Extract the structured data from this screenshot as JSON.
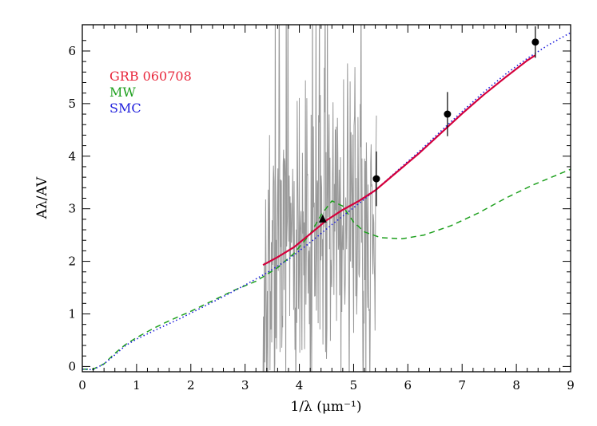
{
  "chart_data": {
    "type": "line",
    "xlabel": "1/λ (μm⁻¹)",
    "ylabel": "Aλ/AV",
    "xlim": [
      0,
      9
    ],
    "ylim": [
      -0.1,
      6.5
    ],
    "x_ticks": [
      0,
      1,
      2,
      3,
      4,
      5,
      6,
      7,
      8,
      9
    ],
    "y_ticks": [
      0,
      1,
      2,
      3,
      4,
      5,
      6
    ],
    "legend_placement": "upper-left",
    "grid": false,
    "legend": [
      {
        "label": "GRB 060708",
        "color": "#e8283c"
      },
      {
        "label": "MW",
        "color": "#1ea01e"
      },
      {
        "label": "SMC",
        "color": "#1e1edc"
      }
    ],
    "series": [
      {
        "name": "GRB 060708",
        "style": "solid",
        "color": "#d4003c",
        "x": [
          3.33,
          3.6,
          3.9,
          4.2,
          4.5,
          4.8,
          5.1,
          5.4,
          5.8,
          6.2,
          6.6,
          7.0,
          7.4,
          7.8,
          8.2,
          8.35
        ],
        "y": [
          1.93,
          2.08,
          2.27,
          2.52,
          2.78,
          2.98,
          3.15,
          3.35,
          3.7,
          4.05,
          4.43,
          4.81,
          5.17,
          5.5,
          5.82,
          5.92
        ]
      },
      {
        "name": "MW",
        "style": "dashed",
        "color": "#1ea01e",
        "x": [
          0.0,
          0.2,
          0.4,
          0.6,
          0.8,
          1.0,
          1.3,
          1.6,
          2.0,
          2.4,
          2.8,
          3.2,
          3.6,
          3.9,
          4.2,
          4.4,
          4.6,
          4.8,
          5.0,
          5.2,
          5.5,
          5.9,
          6.3,
          6.8,
          7.3,
          7.8,
          8.3,
          9.0
        ],
        "y": [
          -0.05,
          -0.05,
          0.05,
          0.25,
          0.42,
          0.55,
          0.72,
          0.87,
          1.05,
          1.25,
          1.45,
          1.62,
          1.88,
          2.15,
          2.52,
          2.88,
          3.15,
          3.05,
          2.75,
          2.56,
          2.45,
          2.43,
          2.5,
          2.68,
          2.92,
          3.2,
          3.45,
          3.75
        ]
      },
      {
        "name": "SMC",
        "style": "dotted",
        "color": "#1e1edc",
        "x": [
          0.0,
          0.2,
          0.4,
          0.6,
          0.8,
          1.0,
          1.4,
          1.8,
          2.2,
          2.6,
          3.0,
          3.4,
          3.8,
          4.2,
          4.6,
          5.0,
          5.4,
          5.8,
          6.2,
          6.6,
          7.0,
          7.4,
          7.8,
          8.2,
          8.6,
          9.0
        ],
        "y": [
          -0.05,
          -0.06,
          0.05,
          0.22,
          0.4,
          0.52,
          0.72,
          0.91,
          1.12,
          1.33,
          1.55,
          1.78,
          2.04,
          2.36,
          2.7,
          3.02,
          3.35,
          3.72,
          4.08,
          4.47,
          4.85,
          5.22,
          5.56,
          5.86,
          6.12,
          6.35
        ]
      },
      {
        "name": "spectrum",
        "style": "noisy",
        "color": "#999999",
        "x_range": [
          3.33,
          5.42
        ],
        "y_range": [
          -0.1,
          6.5
        ]
      }
    ],
    "points": [
      {
        "x": 5.42,
        "y": 3.57,
        "err": 0.52,
        "marker": "circle"
      },
      {
        "x": 6.73,
        "y": 4.8,
        "err": 0.42,
        "marker": "circle"
      },
      {
        "x": 8.35,
        "y": 6.17,
        "err": 0.3,
        "marker": "circle"
      },
      {
        "x": 4.43,
        "y": 2.8,
        "err": 0.0,
        "marker": "triangle"
      }
    ]
  }
}
